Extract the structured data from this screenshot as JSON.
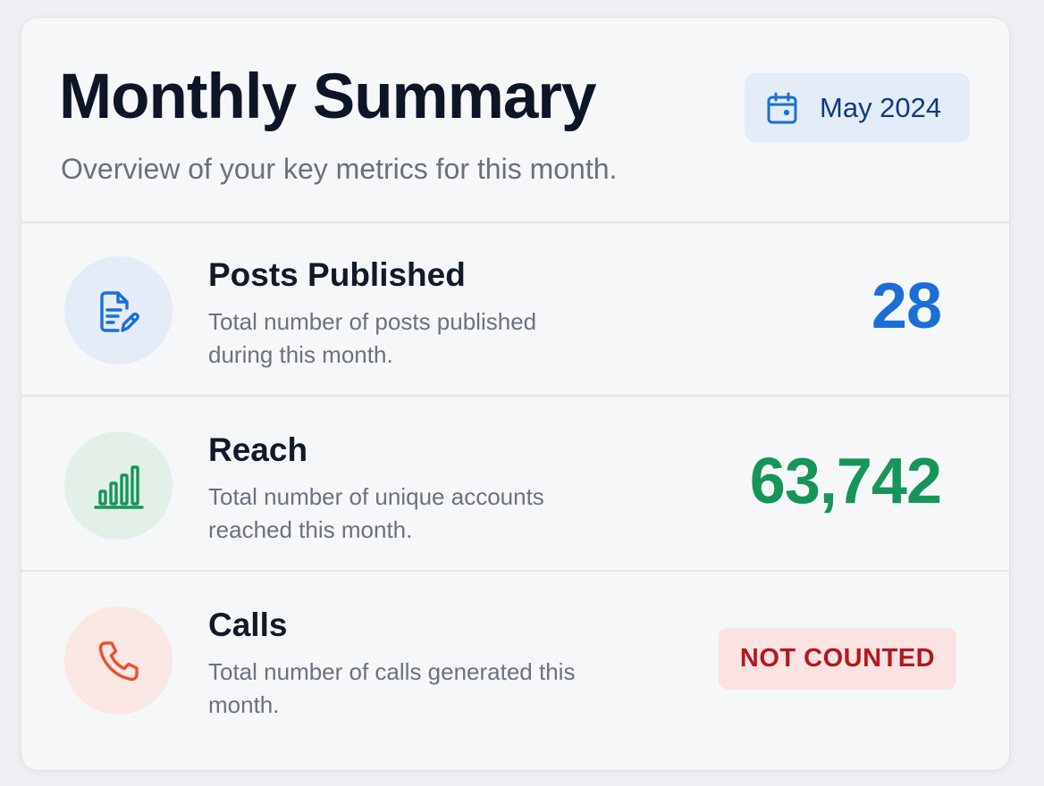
{
  "header": {
    "title": "Monthly Summary",
    "subtitle": "Overview of your key metrics for this month.",
    "date_icon": "calendar-icon",
    "date_label": "May 2024"
  },
  "metrics": [
    {
      "title": "Posts Published",
      "description": "Total number of posts published during this month.",
      "value": "28",
      "icon": "document-edit-icon",
      "accent": "#1a6fd6",
      "icon_bg": "#e4ecf8"
    },
    {
      "title": "Reach",
      "description": "Total number of unique accounts reached this month.",
      "value": "63,742",
      "icon": "bar-chart-icon",
      "accent": "#16955a",
      "icon_bg": "#e2f0e8"
    },
    {
      "title": "Calls",
      "description": "Total number of calls generated this month.",
      "status": "NOT COUNTED",
      "icon": "phone-icon",
      "accent": "#e8522f",
      "icon_bg": "#fbe7e4"
    }
  ],
  "colors": {
    "status_badge_bg": "#fbe3e3",
    "status_badge_text": "#b3181c",
    "date_pill_bg": "#e3ecf7",
    "date_pill_text": "#0f3a7a"
  }
}
